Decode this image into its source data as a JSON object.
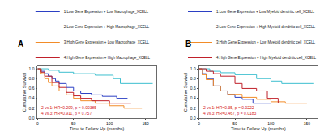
{
  "chart_data": [
    {
      "type": "line",
      "title": "A",
      "x_label": "Time to Follow-Up (months)",
      "y_label": "Cumulative Survival",
      "line_style": "step",
      "legend": "top",
      "xlim": [
        0,
        165
      ],
      "xticks": [
        0,
        50,
        100,
        150
      ],
      "ylim": [
        0,
        1.05
      ],
      "yticks": [
        {
          "value": 0,
          "label": "0.0"
        },
        {
          "value": 0.2,
          "label": "0.2"
        },
        {
          "value": 0.4,
          "label": "0.4"
        },
        {
          "value": 0.6,
          "label": "0.6"
        },
        {
          "value": 0.8,
          "label": "0.8"
        },
        {
          "value": 1,
          "label": "1.0"
        }
      ],
      "annotations": [
        "2 vs 1: HR=0.209, p = 0.00385",
        "4 vs 3: HR=0.911, p = 0.757"
      ],
      "annotation_color": "#d62728",
      "series": [
        {
          "name": "1:Low Gene Expression + Low Macrophage_XCELL",
          "color": "#2b3fc4",
          "x": [
            0,
            5,
            10,
            15,
            20,
            25,
            30,
            40,
            50,
            60,
            75,
            90,
            110,
            125
          ],
          "values": [
            1,
            0.95,
            0.9,
            0.85,
            0.8,
            0.75,
            0.7,
            0.62,
            0.55,
            0.5,
            0.47,
            0.44,
            0.4,
            0.4
          ]
        },
        {
          "name": "2:Low Gene Expression + High Macrophage_XCELL",
          "color": "#3cbfcf",
          "x": [
            0,
            15,
            30,
            50,
            80,
            105,
            115,
            160
          ],
          "values": [
            1,
            0.97,
            0.93,
            0.9,
            0.87,
            0.8,
            0.7,
            0.7
          ]
        },
        {
          "name": "3:High Gene Expression + Low Macrophage_XCELL",
          "color": "#f28c28",
          "x": [
            0,
            5,
            10,
            15,
            20,
            30,
            40,
            50,
            60,
            80,
            100,
            120,
            145
          ],
          "values": [
            1,
            0.9,
            0.8,
            0.72,
            0.65,
            0.55,
            0.47,
            0.4,
            0.35,
            0.3,
            0.25,
            0.2,
            0.2
          ]
        },
        {
          "name": "4:High Gene Expression + High Macrophage_XCELL",
          "color": "#c0202a",
          "x": [
            0,
            5,
            10,
            20,
            30,
            40,
            50,
            60,
            75,
            100,
            130
          ],
          "values": [
            1,
            0.93,
            0.85,
            0.72,
            0.62,
            0.52,
            0.45,
            0.4,
            0.35,
            0.3,
            0.3
          ]
        }
      ]
    },
    {
      "type": "line",
      "title": "B",
      "x_label": "Time to Follow-Up (months)",
      "y_label": "Cumulative Survival",
      "line_style": "step",
      "legend": "top",
      "xlim": [
        0,
        165
      ],
      "xticks": [
        0,
        50,
        100,
        150
      ],
      "ylim": [
        0,
        1.05
      ],
      "yticks": [
        {
          "value": 0,
          "label": "0.0"
        },
        {
          "value": 0.2,
          "label": "0.2"
        },
        {
          "value": 0.4,
          "label": "0.4"
        },
        {
          "value": 0.6,
          "label": "0.6"
        },
        {
          "value": 0.8,
          "label": "0.8"
        },
        {
          "value": 1,
          "label": "1.0"
        }
      ],
      "annotations": [
        "2 vs 1: HR=0.35, p = 0.0222",
        "4 vs 3: HR=0.467, p = 0.0183"
      ],
      "annotation_color": "#d62728",
      "series": [
        {
          "name": "1:Low Gene Expression + Low Myeloid dendritic cell_XCELL",
          "color": "#2b3fc4",
          "x": [
            0,
            5,
            10,
            20,
            30,
            40,
            50,
            60,
            75,
            100
          ],
          "values": [
            1,
            0.9,
            0.8,
            0.65,
            0.55,
            0.48,
            0.42,
            0.38,
            0.3,
            0.3
          ]
        },
        {
          "name": "2:Low Gene Expression + High Myeloid dendritic cell_XCELL",
          "color": "#3cbfcf",
          "x": [
            0,
            15,
            30,
            50,
            80,
            100,
            115,
            160
          ],
          "values": [
            1,
            0.95,
            0.92,
            0.88,
            0.8,
            0.75,
            0.7,
            0.7
          ]
        },
        {
          "name": "3:High Gene Expression + Low Myeloid dendritic cell_XCELL",
          "color": "#f28c28",
          "x": [
            0,
            5,
            10,
            20,
            30,
            40,
            60,
            80,
            100,
            120,
            150
          ],
          "values": [
            1,
            0.88,
            0.78,
            0.65,
            0.55,
            0.48,
            0.42,
            0.38,
            0.33,
            0.3,
            0.3
          ]
        },
        {
          "name": "4:High Gene Expression + High Myeloid dendritic cell_XCELL",
          "color": "#c0202a",
          "x": [
            0,
            10,
            20,
            30,
            50,
            60,
            80,
            95,
            110
          ],
          "values": [
            1,
            0.95,
            0.9,
            0.85,
            0.7,
            0.6,
            0.55,
            0.4,
            0.3
          ]
        }
      ]
    }
  ]
}
